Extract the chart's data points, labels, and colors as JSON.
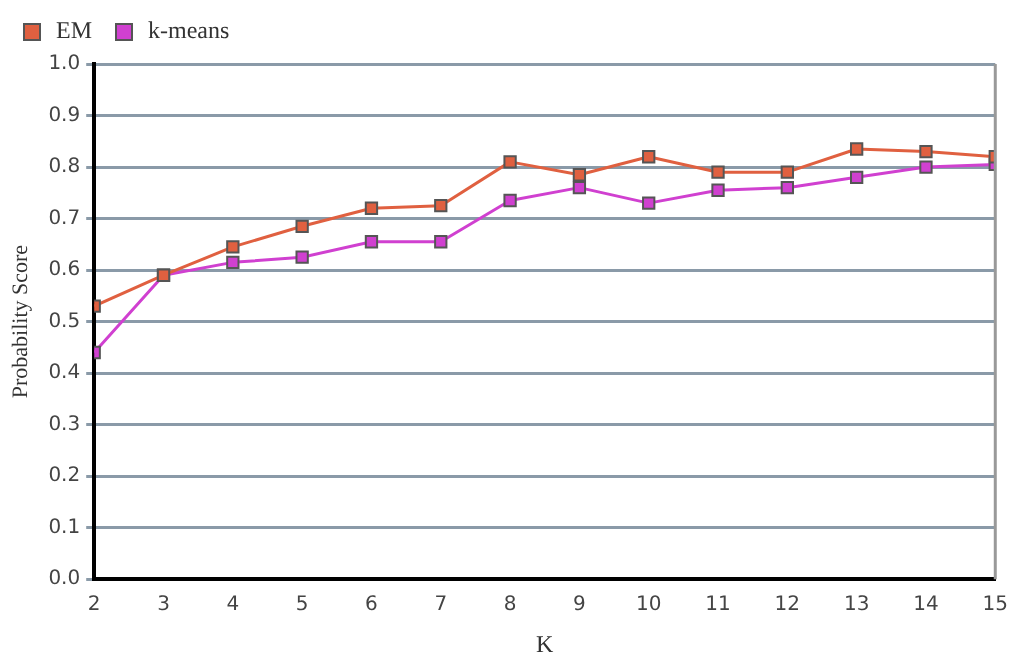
{
  "chart_data": {
    "type": "line",
    "xlabel": "K",
    "ylabel": "Probability Score",
    "x": [
      2,
      3,
      4,
      5,
      6,
      7,
      8,
      9,
      10,
      11,
      12,
      13,
      14,
      15
    ],
    "series": [
      {
        "name": "EM",
        "color": "#e06040",
        "values": [
          0.53,
          0.59,
          0.645,
          0.685,
          0.72,
          0.725,
          0.81,
          0.785,
          0.82,
          0.79,
          0.79,
          0.835,
          0.83,
          0.82
        ]
      },
      {
        "name": "k-means",
        "color": "#d040d0",
        "values": [
          0.44,
          0.59,
          0.615,
          0.625,
          0.655,
          0.655,
          0.735,
          0.76,
          0.73,
          0.755,
          0.76,
          0.78,
          0.8,
          0.805
        ]
      }
    ],
    "xlim": [
      2,
      15
    ],
    "xticks": [
      2,
      3,
      4,
      5,
      6,
      7,
      8,
      9,
      10,
      11,
      12,
      13,
      14,
      15
    ],
    "ylim": [
      0,
      1
    ],
    "yticks": [
      {
        "value": 0,
        "label": "0.0"
      },
      0.1,
      0.2,
      0.3,
      0.4,
      0.5,
      0.6,
      0.7,
      0.8,
      0.9,
      {
        "value": 1,
        "label": "1.0"
      }
    ],
    "grid": "y",
    "legend": "top left",
    "marker": "square",
    "line_style": "solid"
  }
}
